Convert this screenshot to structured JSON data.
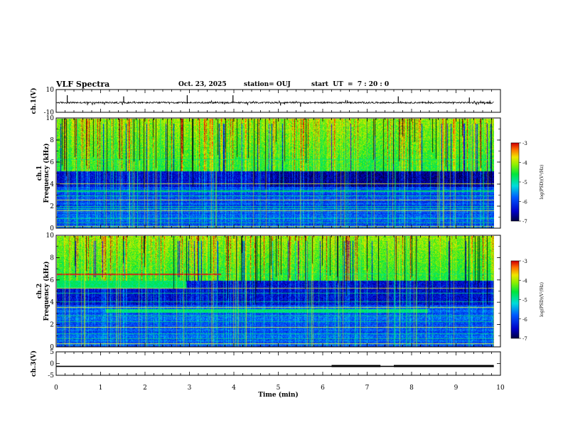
{
  "header": {
    "title": "VLF Spectra",
    "date": "Oct. 23, 2025",
    "station": "station= OUJ",
    "start_label": "start  UT  =",
    "start_time": "7 : 20 : 0"
  },
  "chart_data": {
    "type": "spectrogram",
    "x_axis": {
      "label": "Time  (min)",
      "range": [
        0,
        10
      ],
      "ticks": [
        "0",
        "1",
        "2",
        "3",
        "4",
        "5",
        "6",
        "7",
        "8",
        "9",
        "10"
      ],
      "data_end_min": 9.85
    },
    "panels": [
      {
        "id": "ch1-waveform",
        "type": "line",
        "ylabel": "ch.1(V)",
        "yrange": [
          -10,
          10
        ],
        "yticks": [
          "10",
          "-10"
        ],
        "baseline_v": -1.5,
        "noise_v": 0.7,
        "spikes": [
          {
            "t": 0.25,
            "v": 5
          },
          {
            "t": 1.52,
            "v": 4
          },
          {
            "t": 2.95,
            "v": 5
          },
          {
            "t": 3.98,
            "v": 5
          },
          {
            "t": 5.05,
            "v": -4
          },
          {
            "t": 5.5,
            "v": -5
          },
          {
            "t": 7.7,
            "v": 4
          },
          {
            "t": 9.3,
            "v": 3
          }
        ]
      },
      {
        "id": "ch1-spectrogram",
        "type": "heatmap",
        "ylabel": "ch.1\nFrequency  (kHz)",
        "ylabel_top": "ch.1",
        "ylabel_bottom": "Frequency  (kHz)",
        "yrange": [
          0,
          10
        ],
        "yticks": [
          "0",
          "2",
          "4",
          "6",
          "8",
          "10"
        ],
        "colorbar": {
          "label": "log(PSD)(V²/Hz)",
          "range": [
            -7,
            -3
          ],
          "ticks": [
            "-3",
            "-4",
            "-5",
            "-6",
            "-7"
          ]
        },
        "features": {
          "upper_band_khz": [
            5.2,
            10
          ],
          "dark_gap_khz": [
            3.8,
            5.2
          ],
          "lower_band_khz": [
            0,
            3.8
          ],
          "mid_line_khz": [
            3.4,
            5.6
          ],
          "lines_khz": [
            0.2,
            0.5,
            0.9,
            1.6,
            1.8,
            2.0,
            2.6,
            3.0,
            3.4,
            4.1,
            6.3
          ]
        }
      },
      {
        "id": "ch2-spectrogram",
        "type": "heatmap",
        "ylabel": "ch.2\nFrequency  (kHz)",
        "ylabel_top": "ch.2",
        "ylabel_bottom": "Frequency  (kHz)",
        "yrange": [
          0,
          10
        ],
        "yticks": [
          "0",
          "2",
          "4",
          "6",
          "8",
          "10"
        ],
        "colorbar": {
          "label": "log(PSD)(V²/Hz)",
          "range": [
            -7,
            -3
          ],
          "ticks": [
            "-3",
            "-4",
            "-5",
            "-6",
            "-7"
          ]
        },
        "features": {
          "upper_band_khz": [
            6.0,
            10
          ],
          "dark_gap_khz": [
            3.8,
            5.8
          ],
          "lower_band_khz": [
            0,
            3.2
          ],
          "ridge": {
            "t_start": 1.1,
            "t_end": 8.35,
            "f_khz": [
              3.1,
              3.4
            ]
          },
          "red_line": {
            "t_start": 0,
            "t_end": 3.7,
            "f_khz": 6.6
          },
          "mid_band": {
            "t_start": 0,
            "t_end": 2.9,
            "f_khz": [
              5.3,
              6.3
            ]
          },
          "lines_khz": [
            0.3,
            0.8,
            1.2,
            1.8,
            2.3,
            2.8,
            3.6,
            4.1,
            4.9,
            5.3,
            6.6
          ]
        }
      },
      {
        "id": "ch3-waveform",
        "type": "line",
        "ylabel": "ch.3(V)",
        "yrange": [
          -5,
          5
        ],
        "yticks": [
          "5",
          "0",
          "-5"
        ],
        "level_v": -1.2,
        "high_segments": [
          [
            6.2,
            7.3
          ],
          [
            7.6,
            9.85
          ]
        ],
        "high_level_v": -0.9
      }
    ]
  }
}
